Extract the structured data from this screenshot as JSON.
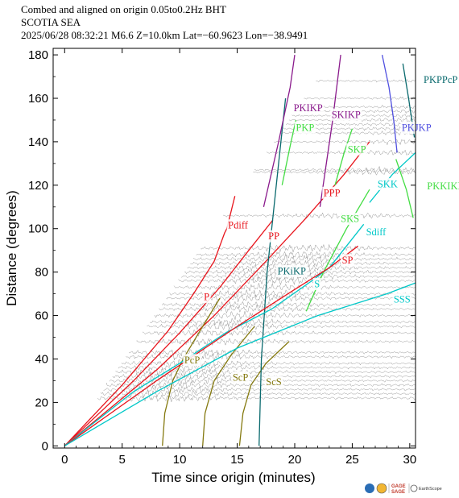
{
  "header": {
    "line1": "Combed and aligned on origin  0.05to0.2Hz  BHT",
    "line2": "SCOTIA SEA",
    "line3": "2025/06/28  08:32:21  M6.6  Z=10.0km Lat=−60.9623 Lon=−38.9491"
  },
  "chart_data": {
    "type": "line",
    "title": "",
    "xlabel": "Time since origin (minutes)",
    "ylabel": "Distance (degrees)",
    "xlim": [
      -1,
      30.5
    ],
    "ylim": [
      -1,
      183
    ],
    "xticks": [
      0,
      5,
      10,
      15,
      20,
      25,
      30
    ],
    "yticks": [
      0,
      20,
      40,
      60,
      80,
      100,
      120,
      140,
      160,
      180
    ],
    "grid": false,
    "trace_distances": [
      22,
      24,
      26,
      28,
      30,
      32,
      34,
      36,
      38,
      41,
      43,
      48,
      52,
      55,
      57,
      60,
      63,
      65,
      68,
      70,
      73,
      76,
      78,
      80,
      82,
      84,
      86,
      88,
      91,
      106,
      126,
      127,
      135,
      140,
      144,
      146,
      148,
      150,
      152,
      154,
      156,
      160,
      168
    ],
    "phases": [
      {
        "name": "P",
        "color": "#e8141c",
        "label_at": [
          12.1,
          67
        ],
        "points": [
          [
            0,
            0
          ],
          [
            5,
            28
          ],
          [
            9,
            53
          ],
          [
            11.2,
            70
          ],
          [
            13,
            85
          ],
          [
            13.9,
            98
          ],
          [
            14.1,
            100
          ]
        ]
      },
      {
        "name": "Pdiff",
        "color": "#e8141c",
        "label_at": [
          14.2,
          100
        ],
        "points": [
          [
            14.1,
            100
          ],
          [
            14.8,
            115
          ]
        ]
      },
      {
        "name": "PP",
        "color": "#e8141c",
        "label_at": [
          17.7,
          95
        ],
        "points": [
          [
            0,
            0
          ],
          [
            6,
            30
          ],
          [
            10,
            52
          ],
          [
            13.5,
            73
          ],
          [
            16,
            90
          ],
          [
            18.1,
            104
          ]
        ]
      },
      {
        "name": "PPP",
        "color": "#e8141c",
        "label_at": [
          22.5,
          115
        ],
        "points": [
          [
            0,
            0
          ],
          [
            8,
            35
          ],
          [
            13,
            60
          ],
          [
            17.5,
            85
          ],
          [
            21,
            105
          ],
          [
            24.3,
            125
          ],
          [
            26.5,
            140
          ]
        ]
      },
      {
        "name": "PcP",
        "color": "#857a10",
        "label_at": [
          10.4,
          38
        ],
        "points": [
          [
            8.5,
            0
          ],
          [
            8.7,
            15
          ],
          [
            9.4,
            30
          ],
          [
            10.3,
            40
          ],
          [
            12.0,
            55
          ],
          [
            13.5,
            68
          ]
        ]
      },
      {
        "name": "ScP",
        "color": "#857a10",
        "label_at": [
          14.6,
          30
        ],
        "points": [
          [
            12.0,
            0
          ],
          [
            12.2,
            15
          ],
          [
            13.0,
            30
          ],
          [
            14.5,
            42
          ],
          [
            16.5,
            55
          ]
        ]
      },
      {
        "name": "ScS",
        "color": "#857a10",
        "label_at": [
          17.5,
          28
        ],
        "points": [
          [
            15.2,
            0
          ],
          [
            15.5,
            15
          ],
          [
            16.2,
            28
          ],
          [
            17.5,
            38
          ],
          [
            19.5,
            48
          ]
        ]
      },
      {
        "name": "PKiKP",
        "color": "#0a6a6e",
        "label_at": [
          18.5,
          79
        ],
        "points": [
          [
            16.9,
            0
          ],
          [
            17.1,
            40
          ],
          [
            17.6,
            80
          ],
          [
            18.4,
            120
          ],
          [
            19.2,
            160
          ]
        ]
      },
      {
        "name": "PKIKP",
        "color": "#8a1a8c",
        "label_at": [
          19.9,
          154
        ],
        "points": [
          [
            17.3,
            110
          ],
          [
            18.6,
            140
          ],
          [
            19.6,
            165
          ],
          [
            20.0,
            180
          ]
        ]
      },
      {
        "name": "PKP",
        "color": "#44dd44",
        "label_at": [
          20.1,
          145
        ],
        "points": [
          [
            18.9,
            120
          ],
          [
            19.6,
            138
          ],
          [
            20.1,
            150
          ]
        ]
      },
      {
        "name": "SKIKP",
        "color": "#8a1a8c",
        "label_at": [
          23.2,
          151
        ],
        "points": [
          [
            22.2,
            110
          ],
          [
            23.3,
            150
          ],
          [
            24.0,
            180
          ]
        ]
      },
      {
        "name": "SKP",
        "color": "#44dd44",
        "label_at": [
          24.6,
          135
        ],
        "points": [
          [
            23.5,
            120
          ],
          [
            24.3,
            135
          ],
          [
            25.0,
            146
          ]
        ]
      },
      {
        "name": "S",
        "color": "#00c8c8",
        "label_at": [
          21.7,
          73
        ],
        "points": [
          [
            0,
            0
          ],
          [
            6,
            25
          ],
          [
            10,
            38
          ],
          [
            14,
            52
          ],
          [
            18,
            63
          ],
          [
            21.5,
            76
          ],
          [
            23,
            82
          ]
        ]
      },
      {
        "name": "SKS",
        "color": "#44dd44",
        "label_at": [
          24.0,
          103
        ],
        "points": [
          [
            21.0,
            62
          ],
          [
            22.5,
            80
          ],
          [
            24.5,
            100
          ],
          [
            26.5,
            118
          ]
        ]
      },
      {
        "name": "Sdiff",
        "color": "#00c8c8",
        "label_at": [
          26.2,
          97
        ],
        "points": [
          [
            23,
            82
          ],
          [
            26,
            102
          ]
        ]
      },
      {
        "name": "SKK",
        "color": "#00c8c8",
        "label_at": [
          27.2,
          119
        ],
        "points": [
          [
            26.5,
            112
          ],
          [
            28.5,
            125
          ],
          [
            30.5,
            135
          ]
        ]
      },
      {
        "name": "SP",
        "color": "#e8141c",
        "label_at": [
          24.1,
          84
        ],
        "points": [
          [
            0,
            0
          ],
          [
            8,
            30
          ],
          [
            15,
            55
          ],
          [
            20,
            72
          ],
          [
            23,
            82
          ],
          [
            25.5,
            92
          ]
        ]
      },
      {
        "name": "SSS",
        "color": "#00c8c8",
        "label_at": [
          28.6,
          66
        ],
        "points": [
          [
            0,
            0
          ],
          [
            8,
            25
          ],
          [
            15,
            45
          ],
          [
            22,
            60
          ],
          [
            28,
            70
          ],
          [
            30.5,
            75
          ]
        ]
      },
      {
        "name": "PKJKP",
        "color": "#5050e0",
        "label_at": [
          29.3,
          145
        ],
        "points": [
          [
            27.6,
            180
          ],
          [
            28.2,
            165
          ],
          [
            28.6,
            150
          ],
          [
            28.9,
            135
          ]
        ]
      },
      {
        "name": "PKKIKIK",
        "color": "#44dd44",
        "label_at": [
          31.5,
          118
        ],
        "points": [
          [
            28.8,
            132
          ],
          [
            29.7,
            118
          ],
          [
            30.3,
            105
          ]
        ]
      },
      {
        "name": "PKPPcP",
        "color": "#0a6a6e",
        "label_at": [
          31.2,
          167
        ],
        "points": [
          [
            29.4,
            176
          ],
          [
            29.9,
            160
          ],
          [
            30.4,
            142
          ]
        ]
      }
    ]
  },
  "logos": {
    "gage_line1": "GAGE",
    "gage_line2": "SAGE",
    "earthscope": "EarthScope"
  }
}
